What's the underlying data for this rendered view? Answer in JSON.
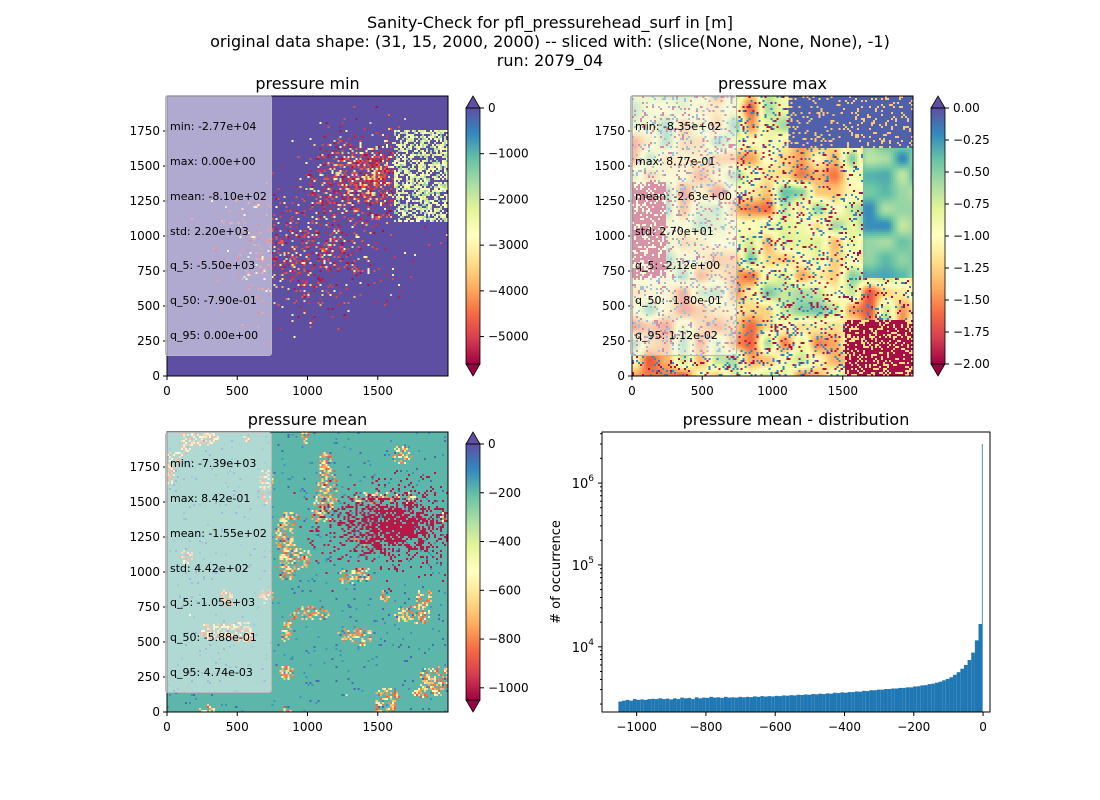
{
  "figure": {
    "title_lines": [
      "Sanity-Check for pfl_pressurehead_surf in [m]",
      "original data shape: (31, 15, 2000, 2000) -- sliced with: (slice(None, None, None), -1)",
      "run: 2079_04"
    ]
  },
  "colors": {
    "spectral": [
      "#9e0142",
      "#d53e4f",
      "#f46d43",
      "#fdae61",
      "#fee08b",
      "#ffffbf",
      "#e6f598",
      "#abdda4",
      "#66c2a5",
      "#3288bd",
      "#5e4fa2"
    ],
    "hist_bar": "#1f77b4"
  },
  "chart_data": [
    {
      "type": "heatmap",
      "title": "pressure min",
      "xlabel": "",
      "ylabel": "",
      "xticks": [
        "0",
        "500",
        "1000",
        "1500"
      ],
      "yticks": [
        "0",
        "250",
        "500",
        "750",
        "1000",
        "1250",
        "1500",
        "1750"
      ],
      "xlim": [
        0,
        2000
      ],
      "ylim": [
        0,
        2000
      ],
      "colorbar": {
        "range": [
          -5600,
          0
        ],
        "ticks": [
          "0",
          "−1000",
          "−2000",
          "−3000",
          "−4000",
          "−5000"
        ],
        "tick_values": [
          0,
          -1000,
          -2000,
          -3000,
          -4000,
          -5000
        ],
        "extend": "both"
      },
      "stats": [
        "min: -2.77e+04",
        "max: 0.00e+00",
        "mean: -8.10e+02",
        "std: 2.20e+03",
        "q_5: -5.50e+03",
        "q_50: -7.90e-01",
        "q_95: 0.00e+00"
      ]
    },
    {
      "type": "heatmap",
      "title": "pressure max",
      "xlabel": "",
      "ylabel": "",
      "xticks": [
        "0",
        "500",
        "1000",
        "1500"
      ],
      "yticks": [
        "0",
        "250",
        "500",
        "750",
        "1000",
        "1250",
        "1500",
        "1750"
      ],
      "xlim": [
        0,
        2000
      ],
      "ylim": [
        0,
        2000
      ],
      "colorbar": {
        "range": [
          -2.0,
          0.0
        ],
        "ticks": [
          "0.00",
          "−0.25",
          "−0.50",
          "−0.75",
          "−1.00",
          "−1.25",
          "−1.50",
          "−1.75",
          "−2.00"
        ],
        "tick_values": [
          0,
          -0.25,
          -0.5,
          -0.75,
          -1.0,
          -1.25,
          -1.5,
          -1.75,
          -2.0
        ],
        "extend": "both"
      },
      "stats": [
        "min: -8.35e+02",
        "max: 8.77e-01",
        "mean: -2.63e+00",
        "std: 2.70e+01",
        "q_5: -2.12e+00",
        "q_50: -1.80e-01",
        "q_95: 1.12e-02"
      ]
    },
    {
      "type": "heatmap",
      "title": "pressure mean",
      "xlabel": "",
      "ylabel": "",
      "xticks": [
        "0",
        "500",
        "1000",
        "1500"
      ],
      "yticks": [
        "0",
        "250",
        "500",
        "750",
        "1000",
        "1250",
        "1500",
        "1750"
      ],
      "xlim": [
        0,
        2000
      ],
      "ylim": [
        0,
        2000
      ],
      "colorbar": {
        "range": [
          -1050,
          0
        ],
        "ticks": [
          "0",
          "−200",
          "−400",
          "−600",
          "−800",
          "−1000"
        ],
        "tick_values": [
          0,
          -200,
          -400,
          -600,
          -800,
          -1000
        ],
        "extend": "both"
      },
      "stats": [
        "min: -7.39e+03",
        "max: 8.42e-01",
        "mean: -1.55e+02",
        "std: 4.42e+02",
        "q_5: -1.05e+03",
        "q_50: -5.88e-01",
        "q_95: 4.74e-03"
      ]
    },
    {
      "type": "bar",
      "title": "pressure mean - distribution",
      "xlabel": "",
      "ylabel": "# of occurrence",
      "log_y": true,
      "xlim": [
        -1100,
        20
      ],
      "ylim": [
        1600,
        4200000
      ],
      "xticks": [
        "−1000",
        "−800",
        "−600",
        "−400",
        "−200",
        "0"
      ],
      "xtick_values": [
        -1000,
        -800,
        -600,
        -400,
        -200,
        0
      ],
      "ytick_values": [
        10000,
        100000,
        1000000
      ],
      "yticks_base": "10",
      "yticks_exp": [
        "4",
        "5",
        "6"
      ],
      "bin_width": 5.25,
      "x": [
        -1047.4,
        -1036.9,
        -1026.4,
        -1015.9,
        -1005.4,
        -994.9,
        -984.4,
        -973.9,
        -963.4,
        -952.9,
        -942.4,
        -931.9,
        -921.4,
        -910.9,
        -900.4,
        -889.9,
        -879.4,
        -868.9,
        -858.4,
        -847.9,
        -837.4,
        -826.9,
        -816.4,
        -805.9,
        -795.4,
        -784.9,
        -774.4,
        -763.9,
        -753.4,
        -742.9,
        -732.4,
        -721.9,
        -711.4,
        -700.9,
        -690.4,
        -679.9,
        -669.4,
        -658.9,
        -648.4,
        -637.9,
        -627.4,
        -616.9,
        -606.4,
        -595.9,
        -585.4,
        -574.9,
        -564.4,
        -553.9,
        -543.4,
        -532.9,
        -522.4,
        -511.9,
        -501.4,
        -490.9,
        -480.4,
        -469.9,
        -459.4,
        -448.9,
        -438.4,
        -427.9,
        -417.4,
        -406.9,
        -396.4,
        -385.9,
        -375.4,
        -364.9,
        -354.4,
        -343.9,
        -333.4,
        -322.9,
        -312.4,
        -301.9,
        -291.4,
        -280.9,
        -270.4,
        -259.9,
        -249.4,
        -238.9,
        -228.4,
        -217.9,
        -207.4,
        -196.9,
        -186.4,
        -175.9,
        -165.4,
        -154.9,
        -144.4,
        -133.9,
        -123.4,
        -112.9,
        -102.4,
        -91.9,
        -81.4,
        -70.9,
        -60.4,
        -49.9,
        -39.4,
        -28.9,
        -18.4,
        -7.9,
        -2.6
      ],
      "values": [
        2150,
        2200,
        2250,
        2200,
        2300,
        2250,
        2280,
        2250,
        2300,
        2320,
        2300,
        2350,
        2300,
        2330,
        2280,
        2350,
        2300,
        2400,
        2350,
        2380,
        2300,
        2420,
        2350,
        2400,
        2380,
        2450,
        2400,
        2420,
        2380,
        2450,
        2400,
        2420,
        2400,
        2450,
        2420,
        2450,
        2430,
        2480,
        2450,
        2500,
        2470,
        2500,
        2480,
        2520,
        2500,
        2550,
        2530,
        2570,
        2550,
        2600,
        2580,
        2620,
        2600,
        2650,
        2630,
        2680,
        2650,
        2700,
        2680,
        2750,
        2720,
        2780,
        2750,
        2800,
        2800,
        2850,
        2830,
        2900,
        2880,
        2950,
        2950,
        3000,
        3000,
        3050,
        3050,
        3100,
        3100,
        3150,
        3150,
        3200,
        3200,
        3280,
        3300,
        3380,
        3400,
        3500,
        3550,
        3650,
        3750,
        3900,
        4050,
        4250,
        4550,
        4900,
        5400,
        6000,
        6900,
        8500,
        12000,
        19000,
        3000000
      ]
    }
  ]
}
